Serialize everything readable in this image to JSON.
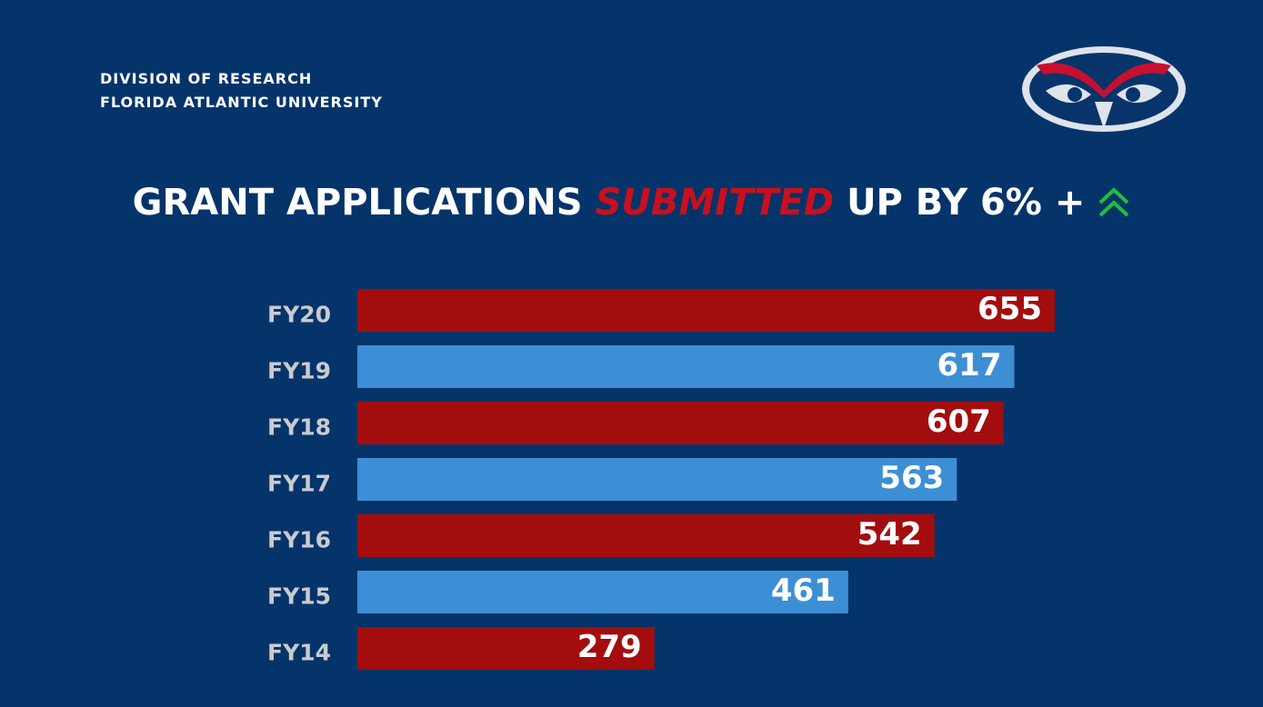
{
  "header": {
    "line1": "DIVISION OF RESEARCH",
    "line2": "FLORIDA ATLANTIC UNIVERSITY"
  },
  "chart_data": {
    "type": "bar",
    "orientation": "horizontal",
    "title_parts": [
      "GRANT APPLICATIONS",
      "SUBMITTED",
      "UP BY 6% +"
    ],
    "categories": [
      "FY20",
      "FY19",
      "FY18",
      "FY17",
      "FY16",
      "FY15",
      "FY14"
    ],
    "values": [
      655,
      617,
      607,
      563,
      542,
      461,
      279
    ],
    "colors": [
      "#a30d0d",
      "#3d8fd5",
      "#a30d0d",
      "#3d8fd5",
      "#a30d0d",
      "#3d8fd5",
      "#a30d0d"
    ]
  }
}
